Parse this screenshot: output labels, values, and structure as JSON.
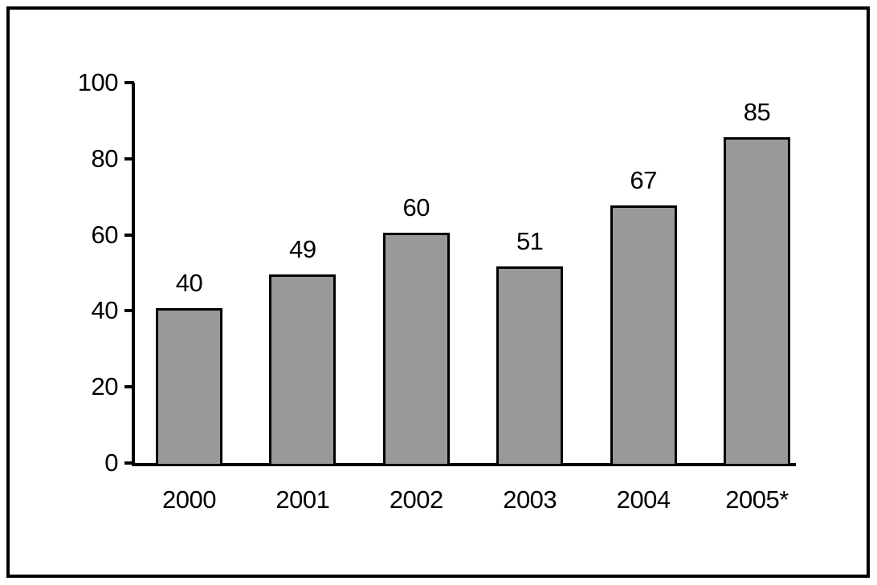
{
  "chart_data": {
    "type": "bar",
    "categories": [
      "2000",
      "2001",
      "2002",
      "2003",
      "2004",
      "2005*"
    ],
    "values": [
      40,
      49,
      60,
      51,
      67,
      85
    ],
    "value_labels": [
      "40",
      "49",
      "60",
      "51",
      "67",
      "85"
    ],
    "y_ticks": [
      0,
      20,
      40,
      60,
      80,
      100
    ],
    "y_tick_labels": [
      "0",
      "20",
      "40",
      "60",
      "80",
      "100"
    ],
    "ylim": [
      0,
      100
    ],
    "xlabel": "",
    "ylabel": "",
    "grid": false,
    "legend_position": "none",
    "bar_fill": "#999999",
    "bar_border": "#000000",
    "axis_color": "#000000",
    "label_color": "#000000",
    "background": "#ffffff",
    "frame_color": "#000000"
  }
}
